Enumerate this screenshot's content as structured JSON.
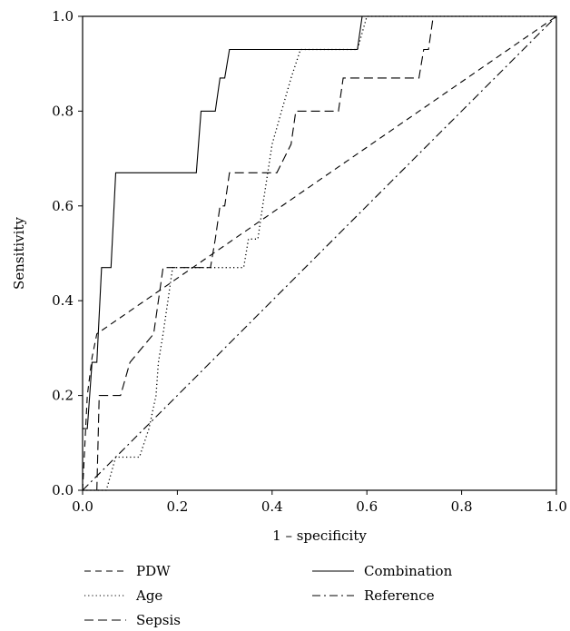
{
  "chart_data": {
    "type": "line",
    "title": "",
    "xlabel": "1 – specificity",
    "ylabel": "Sensitivity",
    "xlim": [
      0,
      1
    ],
    "ylim": [
      0,
      1
    ],
    "xticks": [
      "0.0",
      "0.2",
      "0.4",
      "0.6",
      "0.8",
      "1.0"
    ],
    "yticks": [
      "0.0",
      "0.2",
      "0.4",
      "0.6",
      "0.8",
      "1.0"
    ],
    "grid": false,
    "legend_position": "bottom",
    "series": [
      {
        "name": "PDW",
        "style": "dashed",
        "x": [
          0,
          0.005,
          0.01,
          0.02,
          0.03,
          1
        ],
        "y": [
          0,
          0.1,
          0.2,
          0.28,
          0.33,
          1
        ]
      },
      {
        "name": "Age",
        "style": "dotted",
        "x": [
          0,
          0.05,
          0.07,
          0.09,
          0.12,
          0.14,
          0.155,
          0.16,
          0.17,
          0.18,
          0.19,
          0.2,
          0.34,
          0.35,
          0.37,
          0.38,
          0.4,
          0.42,
          0.44,
          0.46,
          0.58,
          0.6,
          1
        ],
        "y": [
          0,
          0,
          0.07,
          0.07,
          0.07,
          0.13,
          0.2,
          0.27,
          0.33,
          0.4,
          0.47,
          0.47,
          0.47,
          0.53,
          0.53,
          0.6,
          0.73,
          0.8,
          0.87,
          0.93,
          0.93,
          1,
          1
        ]
      },
      {
        "name": "Sepsis",
        "style": "long-dashed",
        "x": [
          0,
          0.03,
          0.035,
          0.08,
          0.1,
          0.15,
          0.16,
          0.17,
          0.27,
          0.28,
          0.29,
          0.3,
          0.31,
          0.41,
          0.44,
          0.45,
          0.54,
          0.55,
          0.71,
          0.72,
          0.73,
          0.74,
          0.75,
          1
        ],
        "y": [
          0,
          0,
          0.2,
          0.2,
          0.27,
          0.33,
          0.4,
          0.47,
          0.47,
          0.53,
          0.6,
          0.6,
          0.67,
          0.67,
          0.73,
          0.8,
          0.8,
          0.87,
          0.87,
          0.93,
          0.93,
          1,
          1,
          1
        ]
      },
      {
        "name": "Combination",
        "style": "solid",
        "x": [
          0,
          0.01,
          0.02,
          0.03,
          0.04,
          0.06,
          0.07,
          0.24,
          0.25,
          0.28,
          0.29,
          0.3,
          0.31,
          0.58,
          0.59,
          1
        ],
        "y": [
          0.13,
          0.13,
          0.27,
          0.27,
          0.47,
          0.47,
          0.67,
          0.67,
          0.8,
          0.8,
          0.87,
          0.87,
          0.93,
          0.93,
          1,
          1
        ]
      },
      {
        "name": "Reference",
        "style": "dash-dot",
        "x": [
          0,
          1
        ],
        "y": [
          0,
          1
        ]
      }
    ]
  }
}
